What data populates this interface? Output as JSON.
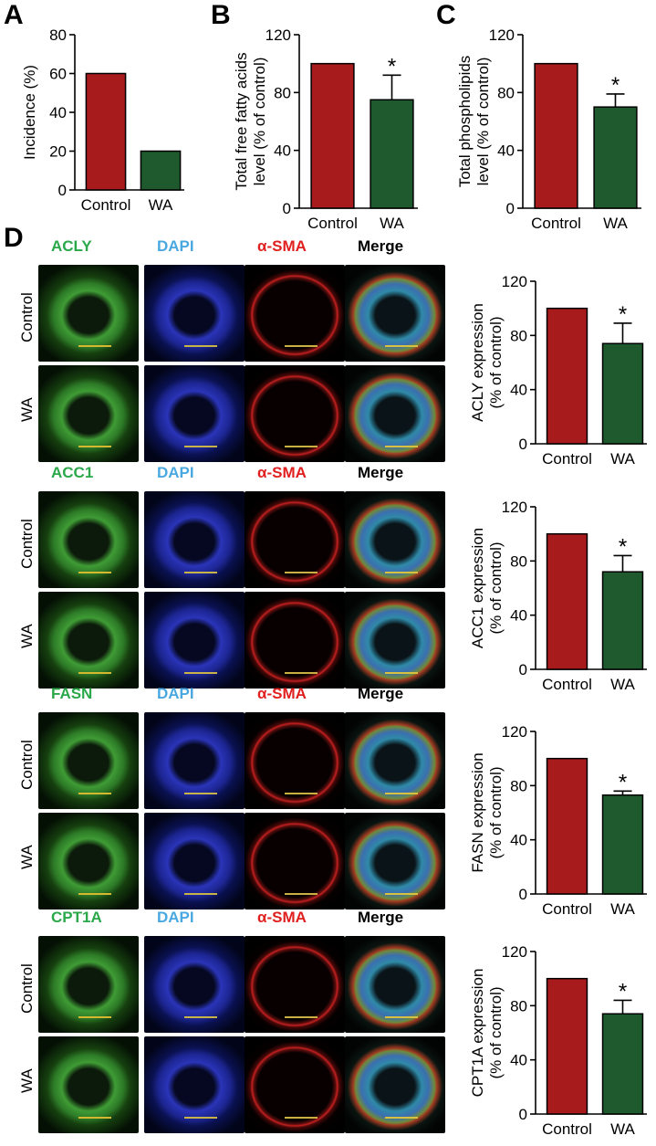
{
  "panels": {
    "A": "A",
    "B": "B",
    "C": "C",
    "D": "D"
  },
  "colors": {
    "control": "#a71b1d",
    "wa": "#1e5a2d",
    "green_label": "#2aa84a",
    "blue_label": "#4aa8e0",
    "red_label": "#e02020",
    "black_label": "#000000"
  },
  "chart_data": [
    {
      "id": "A",
      "type": "bar",
      "categories": [
        "Control",
        "WA"
      ],
      "values": [
        60,
        20
      ],
      "errors": [
        0,
        0
      ],
      "ylabel": "Incidence (%)",
      "ylabel2": "",
      "ylim": [
        0,
        80
      ],
      "yticks": [
        0,
        20,
        40,
        60,
        80
      ],
      "annotation": ""
    },
    {
      "id": "B",
      "type": "bar",
      "categories": [
        "Control",
        "WA"
      ],
      "values": [
        100,
        75
      ],
      "errors": [
        0,
        17
      ],
      "ylabel": "Total free fatty acids",
      "ylabel2": "level (% of control)",
      "ylim": [
        0,
        120
      ],
      "yticks": [
        0,
        40,
        80,
        120
      ],
      "annotation": "*"
    },
    {
      "id": "C",
      "type": "bar",
      "categories": [
        "Control",
        "WA"
      ],
      "values": [
        100,
        70
      ],
      "errors": [
        0,
        9
      ],
      "ylabel": "Total phospholipids",
      "ylabel2": "level (% of control)",
      "ylim": [
        0,
        120
      ],
      "yticks": [
        0,
        40,
        80,
        120
      ],
      "annotation": "*"
    },
    {
      "id": "ACLY",
      "type": "bar",
      "categories": [
        "Control",
        "WA"
      ],
      "values": [
        100,
        74
      ],
      "errors": [
        0,
        15
      ],
      "ylabel": "ACLY expression",
      "ylabel2": "(% of control)",
      "ylim": [
        0,
        120
      ],
      "yticks": [
        0,
        40,
        80,
        120
      ],
      "annotation": "*"
    },
    {
      "id": "ACC1",
      "type": "bar",
      "categories": [
        "Control",
        "WA"
      ],
      "values": [
        100,
        72
      ],
      "errors": [
        0,
        12
      ],
      "ylabel": "ACC1 expression",
      "ylabel2": "(% of control)",
      "ylim": [
        0,
        120
      ],
      "yticks": [
        0,
        40,
        80,
        120
      ],
      "annotation": "*"
    },
    {
      "id": "FASN",
      "type": "bar",
      "categories": [
        "Control",
        "WA"
      ],
      "values": [
        100,
        73
      ],
      "errors": [
        0,
        3
      ],
      "ylabel": "FASN expression",
      "ylabel2": "(% of control)",
      "ylim": [
        0,
        120
      ],
      "yticks": [
        0,
        40,
        80,
        120
      ],
      "annotation": "*"
    },
    {
      "id": "CPT1A",
      "type": "bar",
      "categories": [
        "Control",
        "WA"
      ],
      "values": [
        100,
        74
      ],
      "errors": [
        0,
        10
      ],
      "ylabel": "CPT1A expression",
      "ylabel2": "(% of control)",
      "ylim": [
        0,
        120
      ],
      "yticks": [
        0,
        40,
        80,
        120
      ],
      "annotation": "*"
    }
  ],
  "micrographs": {
    "row_labels": [
      "Control",
      "WA"
    ],
    "groups": [
      {
        "marker": "ACLY",
        "channels": [
          "DAPI",
          "α-SMA",
          "Merge"
        ]
      },
      {
        "marker": "ACC1",
        "channels": [
          "DAPI",
          "α-SMA",
          "Merge"
        ]
      },
      {
        "marker": "FASN",
        "channels": [
          "DAPI",
          "α-SMA",
          "Merge"
        ]
      },
      {
        "marker": "CPT1A",
        "channels": [
          "DAPI",
          "α-SMA",
          "Merge"
        ]
      }
    ]
  }
}
